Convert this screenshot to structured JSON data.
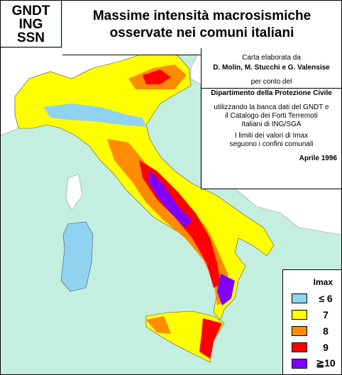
{
  "header": {
    "agency": [
      "GNDT",
      "ING",
      "SSN"
    ],
    "title": [
      "Massime intensità macrosismiche",
      "osservate nei comuni italiani"
    ]
  },
  "info": {
    "credit_intro": "Carta elaborata da",
    "authors": "D. Molin, M. Stucchi e G. Valensise",
    "on_behalf": "per conto del",
    "department": "Dipartimento della Protezione Civile",
    "source": [
      "utilizzando la banca dati del GNDT e",
      "il Catalogo dei Forti Terremoti",
      "Italiani di ING/SGA"
    ],
    "note": [
      "I limiti dei valori di Imax",
      "seguono i confini comunali"
    ],
    "date": "Aprile 1996"
  },
  "legend": {
    "title": "Imax",
    "items": [
      {
        "label": "≤ 6",
        "color": "#8fd3f0"
      },
      {
        "label": "7",
        "color": "#ffff00"
      },
      {
        "label": "8",
        "color": "#ff8c00"
      },
      {
        "label": "9",
        "color": "#ff0000"
      },
      {
        "label": "≧10",
        "color": "#8000ff"
      }
    ]
  }
}
